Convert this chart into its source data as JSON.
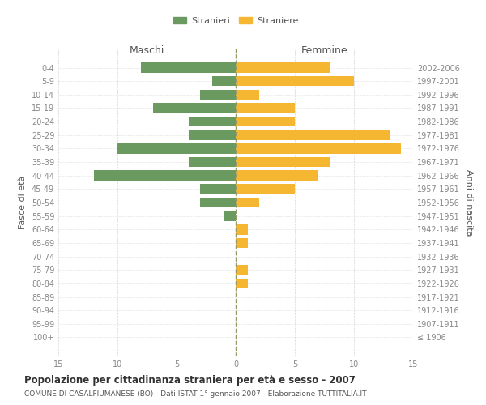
{
  "age_groups": [
    "0-4",
    "5-9",
    "10-14",
    "15-19",
    "20-24",
    "25-29",
    "30-34",
    "35-39",
    "40-44",
    "45-49",
    "50-54",
    "55-59",
    "60-64",
    "65-69",
    "70-74",
    "75-79",
    "80-84",
    "85-89",
    "90-94",
    "95-99",
    "100+"
  ],
  "birth_years": [
    "2002-2006",
    "1997-2001",
    "1992-1996",
    "1987-1991",
    "1982-1986",
    "1977-1981",
    "1972-1976",
    "1967-1971",
    "1962-1966",
    "1957-1961",
    "1952-1956",
    "1947-1951",
    "1942-1946",
    "1937-1941",
    "1932-1936",
    "1927-1931",
    "1922-1926",
    "1917-1921",
    "1912-1916",
    "1907-1911",
    "≤ 1906"
  ],
  "males": [
    8,
    2,
    3,
    7,
    4,
    4,
    10,
    4,
    12,
    3,
    3,
    1,
    0,
    0,
    0,
    0,
    0,
    0,
    0,
    0,
    0
  ],
  "females": [
    8,
    10,
    2,
    5,
    5,
    13,
    14,
    8,
    7,
    5,
    2,
    0,
    1,
    1,
    0,
    1,
    1,
    0,
    0,
    0,
    0
  ],
  "male_color": "#6a9a5f",
  "female_color": "#f5b731",
  "title": "Popolazione per cittadinanza straniera per età e sesso - 2007",
  "subtitle": "COMUNE DI CASALFIUMANESE (BO) - Dati ISTAT 1° gennaio 2007 - Elaborazione TUTTITALIA.IT",
  "ylabel_left": "Fasce di età",
  "ylabel_right": "Anni di nascita",
  "xlabel_left": "Maschi",
  "xlabel_right": "Femmine",
  "legend_male": "Stranieri",
  "legend_female": "Straniere",
  "xlim": 15,
  "background_color": "#ffffff",
  "grid_color": "#cccccc",
  "axis_label_color": "#555555",
  "tick_label_color": "#888888"
}
